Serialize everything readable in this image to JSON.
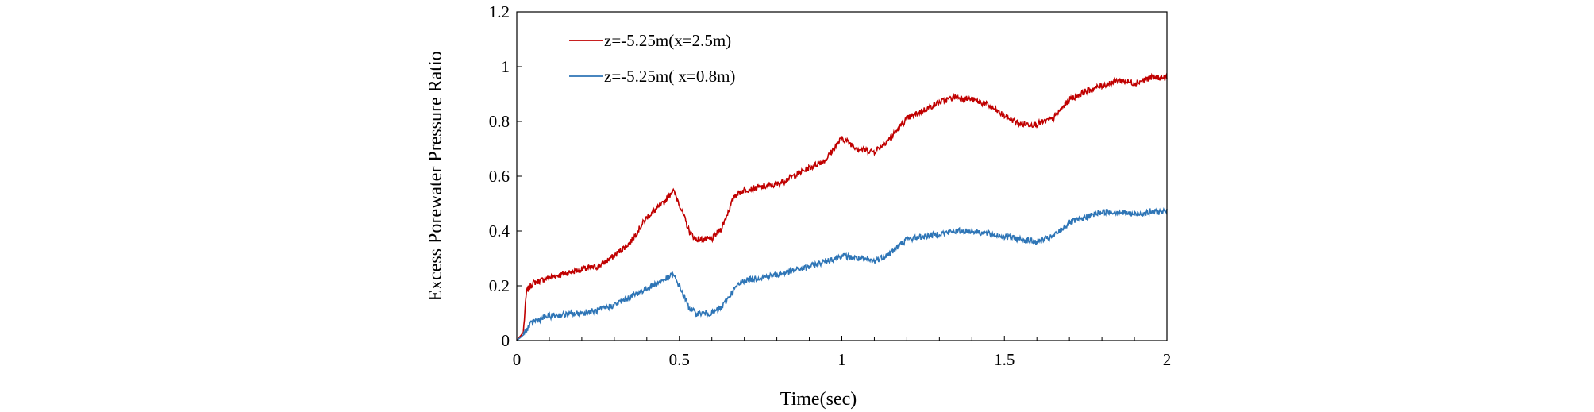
{
  "chart_data": {
    "type": "line",
    "title": "",
    "xlabel": "Time(sec)",
    "ylabel": "Excess Porewater Pressure Ratio",
    "xlim": [
      0,
      2
    ],
    "ylim": [
      0,
      1.2
    ],
    "x_ticks": [
      "0",
      "0.5",
      "1",
      "1.5",
      "2"
    ],
    "y_ticks": [
      "0",
      "0.2",
      "0.4",
      "0.6",
      "0.8",
      "1",
      "1.2"
    ],
    "grid": false,
    "legend_placement": "top-left",
    "x": [
      0,
      0.02,
      0.03,
      0.05,
      0.1,
      0.2,
      0.25,
      0.3,
      0.35,
      0.4,
      0.45,
      0.48,
      0.5,
      0.53,
      0.55,
      0.6,
      0.63,
      0.67,
      0.7,
      0.8,
      0.9,
      0.95,
      1.0,
      1.05,
      1.1,
      1.15,
      1.2,
      1.25,
      1.3,
      1.35,
      1.4,
      1.45,
      1.5,
      1.55,
      1.6,
      1.65,
      1.7,
      1.75,
      1.8,
      1.85,
      1.9,
      1.95,
      2.0
    ],
    "series": [
      {
        "name": "z=-5.25m(x=2.5m)",
        "color": "#c00000",
        "values": [
          0,
          0.03,
          0.18,
          0.21,
          0.23,
          0.26,
          0.27,
          0.31,
          0.36,
          0.45,
          0.5,
          0.55,
          0.5,
          0.4,
          0.37,
          0.37,
          0.41,
          0.53,
          0.55,
          0.57,
          0.63,
          0.66,
          0.74,
          0.7,
          0.69,
          0.74,
          0.81,
          0.84,
          0.87,
          0.89,
          0.88,
          0.86,
          0.82,
          0.79,
          0.79,
          0.81,
          0.88,
          0.91,
          0.93,
          0.95,
          0.94,
          0.96,
          0.96
        ]
      },
      {
        "name": "z=-5.25m( x=0.8m)",
        "color": "#2e75b6",
        "values": [
          0,
          0.02,
          0.04,
          0.07,
          0.09,
          0.1,
          0.11,
          0.13,
          0.16,
          0.19,
          0.22,
          0.24,
          0.2,
          0.12,
          0.1,
          0.1,
          0.12,
          0.19,
          0.22,
          0.24,
          0.27,
          0.29,
          0.31,
          0.3,
          0.29,
          0.32,
          0.37,
          0.38,
          0.39,
          0.4,
          0.4,
          0.39,
          0.38,
          0.37,
          0.36,
          0.38,
          0.43,
          0.45,
          0.47,
          0.47,
          0.46,
          0.47,
          0.47
        ]
      }
    ]
  }
}
